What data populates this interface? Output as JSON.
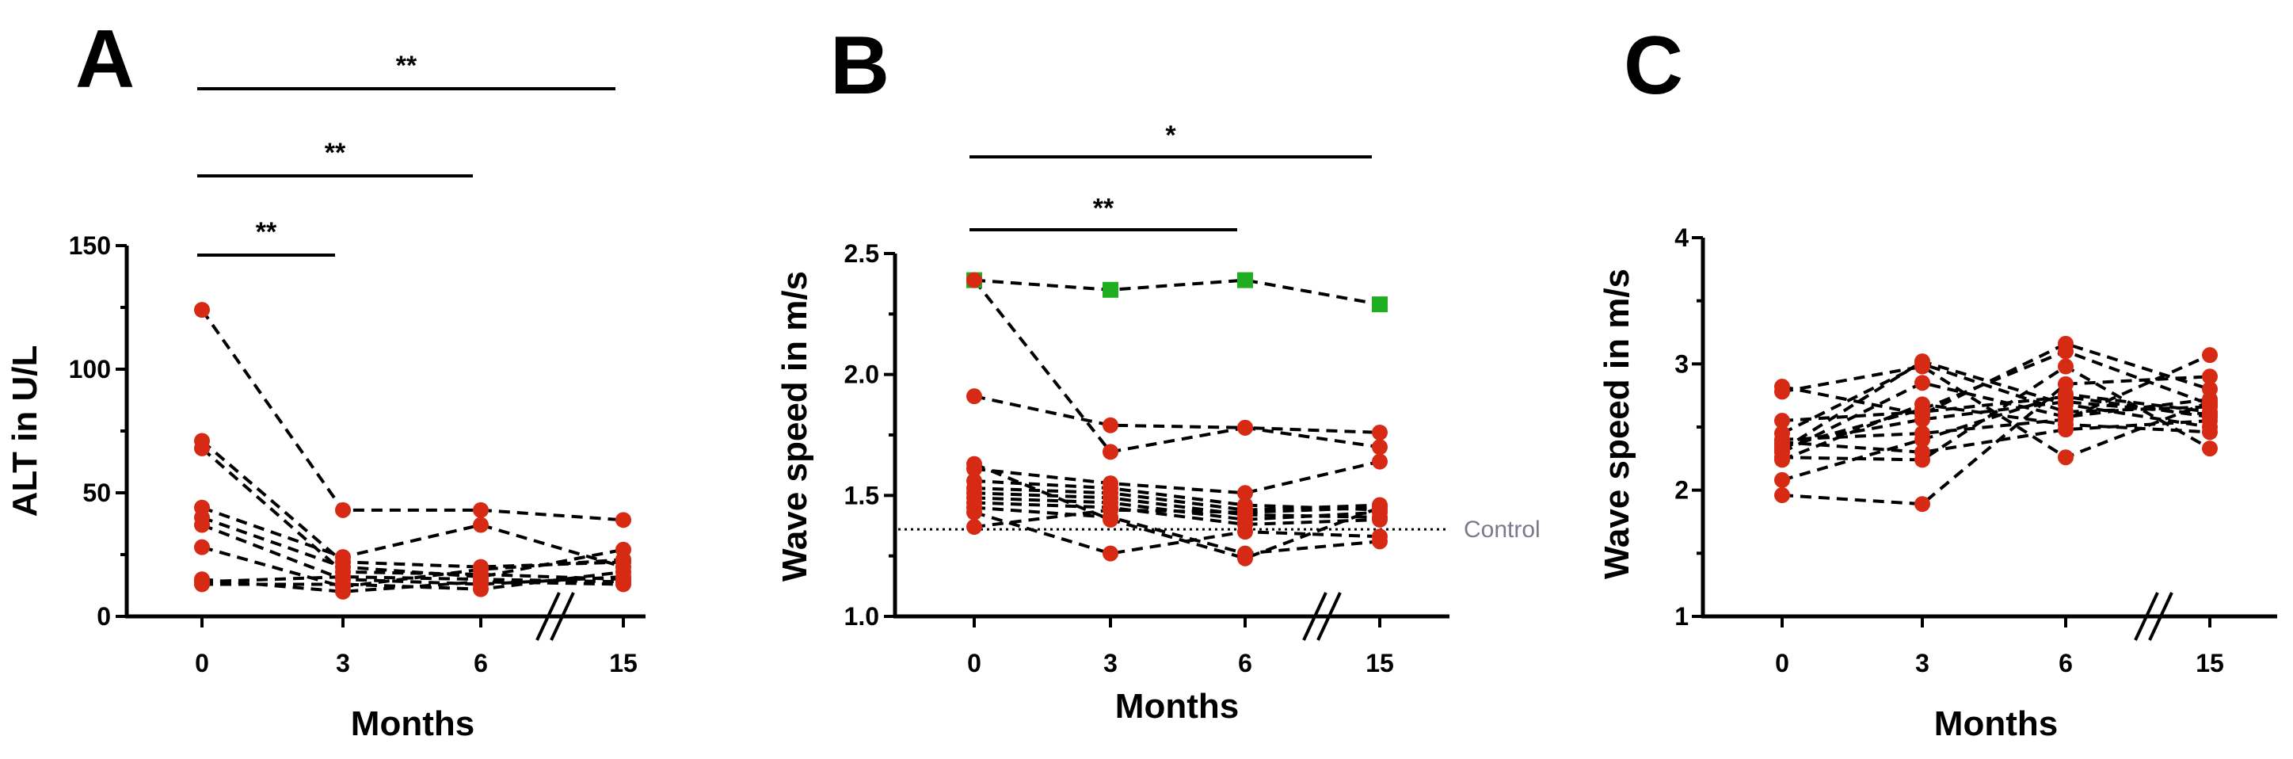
{
  "colors": {
    "red": "#d62a14",
    "green": "#1fae1f",
    "line": "#000000",
    "control": "#7a7a8c"
  },
  "chart_data": [
    {
      "panel": "A",
      "type": "line",
      "xlabel": "Months",
      "ylabel": "ALT in U/L",
      "categories": [
        "0",
        "3",
        "6",
        "15"
      ],
      "ylim": [
        0,
        150
      ],
      "yticks": [
        0,
        50,
        100,
        150
      ],
      "ytick_labels": [
        "0",
        "50",
        "100",
        "150"
      ],
      "axis_break": true,
      "significance": [
        {
          "from": "0",
          "to": "3",
          "label": "**"
        },
        {
          "from": "0",
          "to": "6",
          "label": "**"
        },
        {
          "from": "0",
          "to": "15",
          "label": "**"
        }
      ],
      "series": [
        {
          "values": [
            124,
            43,
            43,
            39
          ]
        },
        {
          "values": [
            71,
            22,
            20,
            22
          ]
        },
        {
          "values": [
            68,
            18,
            17,
            15
          ]
        },
        {
          "values": [
            44,
            24,
            37,
            20
          ]
        },
        {
          "values": [
            40,
            20,
            16,
            27
          ]
        },
        {
          "values": [
            37,
            15,
            13,
            16
          ]
        },
        {
          "values": [
            28,
            12,
            19,
            23
          ]
        },
        {
          "values": [
            15,
            10,
            14,
            13
          ]
        },
        {
          "values": [
            13,
            13,
            11,
            18
          ]
        },
        {
          "values": [
            14,
            16,
            15,
            14
          ]
        }
      ]
    },
    {
      "panel": "B",
      "type": "line",
      "xlabel": "Months",
      "ylabel": "Wave speed in m/s",
      "categories": [
        "0",
        "3",
        "6",
        "15"
      ],
      "ylim": [
        1.0,
        2.5
      ],
      "yticks": [
        1.0,
        1.5,
        2.0,
        2.5
      ],
      "ytick_labels": [
        "1.0",
        "1.5",
        "2.0",
        "2.5"
      ],
      "axis_break": true,
      "reference_line": {
        "value": 1.36,
        "label": "Control"
      },
      "significance": [
        {
          "from": "0",
          "to": "6",
          "label": "**"
        },
        {
          "from": "0",
          "to": "15",
          "label": "*"
        }
      ],
      "series": [
        {
          "values": [
            2.39,
            2.35,
            2.39,
            2.29
          ],
          "marker": "square",
          "color": "green"
        },
        {
          "values": [
            2.39,
            1.68,
            1.78,
            1.76
          ]
        },
        {
          "values": [
            1.91,
            1.79,
            1.78,
            1.7
          ]
        },
        {
          "values": [
            1.63,
            1.4,
            1.24,
            1.45
          ]
        },
        {
          "values": [
            1.61,
            1.55,
            1.51,
            1.64
          ]
        },
        {
          "values": [
            1.56,
            1.53,
            1.46,
            1.44
          ]
        },
        {
          "values": [
            1.53,
            1.51,
            1.44,
            1.46
          ]
        },
        {
          "values": [
            1.51,
            1.49,
            1.42,
            1.41
          ]
        },
        {
          "values": [
            1.49,
            1.47,
            1.4,
            1.43
          ]
        },
        {
          "values": [
            1.47,
            1.45,
            1.38,
            1.4
          ]
        },
        {
          "values": [
            1.45,
            1.41,
            1.26,
            1.31
          ]
        },
        {
          "values": [
            1.43,
            1.26,
            1.35,
            1.33
          ]
        },
        {
          "values": [
            1.37,
            1.44,
            1.43,
            1.45
          ]
        }
      ]
    },
    {
      "panel": "C",
      "type": "line",
      "xlabel": "Months",
      "ylabel": "Wave speed in m/s",
      "categories": [
        "0",
        "3",
        "6",
        "15"
      ],
      "ylim": [
        1,
        4
      ],
      "yticks": [
        1,
        2,
        3,
        4
      ],
      "ytick_labels": [
        "1",
        "2",
        "3",
        "4"
      ],
      "axis_break": true,
      "significance": [],
      "series": [
        {
          "values": [
            2.82,
            2.6,
            3.16,
            2.8
          ]
        },
        {
          "values": [
            2.78,
            2.98,
            2.26,
            2.7
          ]
        },
        {
          "values": [
            2.55,
            2.62,
            2.74,
            2.58
          ]
        },
        {
          "values": [
            2.45,
            3.0,
            2.62,
            2.66
          ]
        },
        {
          "values": [
            2.4,
            2.45,
            2.56,
            3.07
          ]
        },
        {
          "values": [
            2.36,
            2.56,
            2.7,
            2.6
          ]
        },
        {
          "values": [
            2.32,
            3.02,
            2.68,
            2.5
          ]
        },
        {
          "values": [
            2.3,
            2.85,
            2.58,
            2.72
          ]
        },
        {
          "values": [
            2.26,
            2.24,
            2.98,
            2.33
          ]
        },
        {
          "values": [
            2.24,
            2.68,
            2.52,
            2.46
          ]
        },
        {
          "values": [
            2.08,
            2.4,
            2.76,
            2.62
          ]
        },
        {
          "values": [
            1.96,
            1.89,
            2.84,
            2.9
          ]
        },
        {
          "values": [
            2.34,
            2.64,
            3.1,
            2.68
          ]
        },
        {
          "values": [
            2.38,
            2.3,
            2.48,
            2.55
          ]
        }
      ]
    }
  ]
}
